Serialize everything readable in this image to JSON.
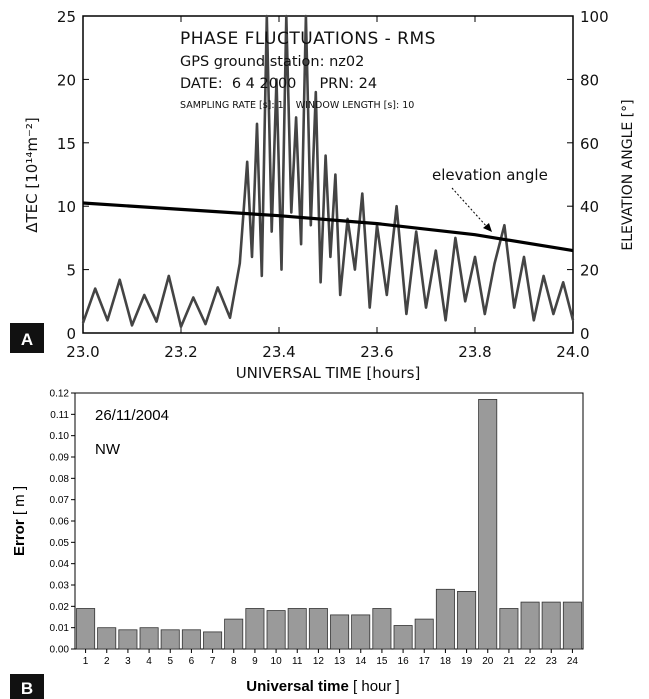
{
  "chart_data": [
    {
      "panel_label": "A",
      "type": "line",
      "annotation_lines": [
        "PHASE FLUCTUATIONS - RMS",
        "GPS ground station: nz02",
        "DATE:  6 4 2000     PRN: 24",
        "SAMPLING RATE [s]: 1    WINDOW LENGTH [s]: 10"
      ],
      "xlabel": "UNIVERSAL TIME [hours]",
      "ylabel": "ΔTEC [10¹⁴m⁻²]",
      "y2label": "ELEVATION ANGLE [°]",
      "xlim": [
        23.0,
        24.0
      ],
      "ylim": [
        0,
        25
      ],
      "y2lim": [
        0,
        100
      ],
      "xticks": [
        "23.0",
        "23.2",
        "23.4",
        "23.6",
        "23.8",
        "24.0"
      ],
      "yticks": [
        "0",
        "5",
        "10",
        "15",
        "20",
        "25"
      ],
      "y2ticks": [
        "0",
        "20",
        "40",
        "60",
        "80",
        "100"
      ],
      "arrow_label": "elevation angle",
      "series": [
        {
          "color": "#444444",
          "x": [
            23.0,
            23.025,
            23.05,
            23.075,
            23.1,
            23.125,
            23.15,
            23.175,
            23.2,
            23.225,
            23.25,
            23.275,
            23.3,
            23.32,
            23.335,
            23.345,
            23.355,
            23.365,
            23.375,
            23.385,
            23.395,
            23.405,
            23.415,
            23.425,
            23.435,
            23.445,
            23.455,
            23.465,
            23.475,
            23.485,
            23.495,
            23.505,
            23.515,
            23.525,
            23.54,
            23.555,
            23.57,
            23.585,
            23.6,
            23.62,
            23.64,
            23.66,
            23.68,
            23.7,
            23.72,
            23.74,
            23.76,
            23.78,
            23.8,
            23.82,
            23.84,
            23.86,
            23.88,
            23.9,
            23.92,
            23.94,
            23.96,
            23.98,
            24.0
          ],
          "y": [
            0.8,
            3.5,
            1.0,
            4.2,
            0.6,
            3.0,
            0.9,
            4.5,
            0.5,
            2.8,
            0.7,
            3.6,
            1.2,
            5.5,
            13.5,
            6.0,
            16.5,
            4.5,
            25.0,
            8.0,
            20.0,
            5.0,
            25.0,
            9.5,
            17.0,
            7.0,
            25.0,
            8.5,
            19.0,
            4.0,
            14.0,
            6.0,
            12.5,
            3.0,
            9.0,
            5.0,
            11.0,
            2.0,
            8.5,
            3.0,
            10.0,
            1.5,
            8.0,
            2.0,
            6.5,
            1.0,
            7.5,
            2.5,
            6.0,
            1.5,
            5.5,
            8.5,
            2.0,
            6.0,
            1.0,
            4.5,
            1.5,
            4.0,
            1.0
          ]
        },
        {
          "name": "elevation angle",
          "color": "#000000",
          "axis": "right",
          "x": [
            23.0,
            23.2,
            23.4,
            23.6,
            23.8,
            24.0
          ],
          "y": [
            41.0,
            39.0,
            37.0,
            34.5,
            31.0,
            26.0
          ]
        }
      ]
    },
    {
      "panel_label": "B",
      "type": "bar",
      "annotation_lines": [
        "26/11/2004",
        "NW"
      ],
      "xlabel_bold": "Universal time",
      "xlabel_rest": " [ hour ]",
      "ylabel_bold": "Error",
      "ylabel_rest": " [ m ]",
      "ylim": [
        0,
        0.12
      ],
      "yticks": [
        "0.00",
        "0.01",
        "0.02",
        "0.03",
        "0.04",
        "0.05",
        "0.06",
        "0.07",
        "0.08",
        "0.09",
        "0.10",
        "0.11",
        "0.12"
      ],
      "categories": [
        "1",
        "2",
        "3",
        "4",
        "5",
        "6",
        "7",
        "8",
        "9",
        "10",
        "11",
        "12",
        "13",
        "14",
        "15",
        "16",
        "17",
        "18",
        "19",
        "20",
        "21",
        "22",
        "23",
        "24"
      ],
      "values": [
        0.019,
        0.01,
        0.009,
        0.01,
        0.009,
        0.009,
        0.008,
        0.014,
        0.019,
        0.018,
        0.019,
        0.019,
        0.016,
        0.016,
        0.019,
        0.011,
        0.014,
        0.028,
        0.027,
        0.117,
        0.019,
        0.022,
        0.022,
        0.022
      ],
      "bar_color": "#9a9a9a"
    }
  ]
}
